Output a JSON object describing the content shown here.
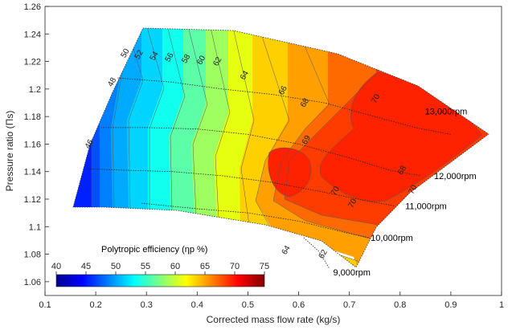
{
  "chart_data": {
    "type": "contour",
    "xlabel": "Corrected mass flow rate (kg/s)",
    "ylabel": "Pressure ratio (Πs)",
    "xlim": [
      0.1,
      1.0
    ],
    "ylim": [
      1.05,
      1.26
    ],
    "xticks": [
      "0.1",
      "0.2",
      "0.3",
      "0.4",
      "0.5",
      "0.6",
      "0.7",
      "0.8",
      "0.9",
      "1"
    ],
    "yticks": [
      "1.06",
      "1.08",
      "1.1",
      "1.12",
      "1.14",
      "1.16",
      "1.18",
      "1.2",
      "1.22",
      "1.24",
      "1.26"
    ],
    "colorbar": {
      "title": "Polytropic efficiency (ηp %)",
      "min": 40,
      "max": 75,
      "ticks": [
        "40",
        "45",
        "50",
        "55",
        "60",
        "65",
        "70",
        "75"
      ]
    },
    "contour_levels": [
      46,
      48,
      50,
      52,
      54,
      56,
      58,
      60,
      62,
      64,
      66,
      68,
      69,
      70
    ],
    "contour_labels": [
      {
        "text": "46",
        "x": 0.187,
        "y": 1.16
      },
      {
        "text": "48",
        "x": 0.232,
        "y": 1.205
      },
      {
        "text": "50",
        "x": 0.258,
        "y": 1.226
      },
      {
        "text": "52",
        "x": 0.285,
        "y": 1.225
      },
      {
        "text": "54",
        "x": 0.315,
        "y": 1.224
      },
      {
        "text": "56",
        "x": 0.345,
        "y": 1.223
      },
      {
        "text": "58",
        "x": 0.378,
        "y": 1.222
      },
      {
        "text": "60",
        "x": 0.408,
        "y": 1.221
      },
      {
        "text": "62",
        "x": 0.44,
        "y": 1.22
      },
      {
        "text": "64",
        "x": 0.493,
        "y": 1.21
      },
      {
        "text": "66",
        "x": 0.569,
        "y": 1.199
      },
      {
        "text": "68",
        "x": 0.612,
        "y": 1.19
      },
      {
        "text": "69",
        "x": 0.615,
        "y": 1.163
      },
      {
        "text": "70",
        "x": 0.752,
        "y": 1.193
      },
      {
        "text": "70",
        "x": 0.672,
        "y": 1.126
      },
      {
        "text": "70",
        "x": 0.706,
        "y": 1.117
      },
      {
        "text": "70",
        "x": 0.825,
        "y": 1.127
      },
      {
        "text": "68",
        "x": 0.804,
        "y": 1.141
      },
      {
        "text": "64",
        "x": 0.575,
        "y": 1.083
      },
      {
        "text": "62",
        "x": 0.648,
        "y": 1.08
      }
    ],
    "speed_lines": [
      {
        "label": "13,000rpm",
        "lx": 0.849,
        "ly": 1.184,
        "points": [
          [
            0.243,
            1.208
          ],
          [
            0.35,
            1.205
          ],
          [
            0.45,
            1.2
          ],
          [
            0.55,
            1.196
          ],
          [
            0.65,
            1.19
          ],
          [
            0.75,
            1.18
          ],
          [
            0.83,
            1.172
          ],
          [
            0.9,
            1.167
          ]
        ]
      },
      {
        "label": "12,000rpm",
        "lx": 0.867,
        "ly": 1.137,
        "points": [
          [
            0.21,
            1.172
          ],
          [
            0.3,
            1.172
          ],
          [
            0.4,
            1.171
          ],
          [
            0.5,
            1.167
          ],
          [
            0.6,
            1.16
          ],
          [
            0.7,
            1.15
          ],
          [
            0.78,
            1.141
          ],
          [
            0.84,
            1.137
          ]
        ]
      },
      {
        "label": "11,000rpm",
        "lx": 0.81,
        "ly": 1.115,
        "points": [
          [
            0.183,
            1.142
          ],
          [
            0.26,
            1.141
          ],
          [
            0.35,
            1.14
          ],
          [
            0.45,
            1.137
          ],
          [
            0.55,
            1.132
          ],
          [
            0.65,
            1.125
          ],
          [
            0.73,
            1.119
          ],
          [
            0.79,
            1.115
          ]
        ]
      },
      {
        "label": "10,000rpm",
        "lx": 0.742,
        "ly": 1.092,
        "points": [
          [
            0.29,
            1.117
          ],
          [
            0.4,
            1.113
          ],
          [
            0.5,
            1.11
          ],
          [
            0.6,
            1.104
          ],
          [
            0.7,
            1.095
          ],
          [
            0.74,
            1.092
          ]
        ]
      },
      {
        "label": "9,000rpm",
        "lx": 0.668,
        "ly": 1.067,
        "points": [
          [
            0.61,
            1.092
          ],
          [
            0.64,
            1.082
          ],
          [
            0.66,
            1.07
          ]
        ]
      }
    ]
  }
}
